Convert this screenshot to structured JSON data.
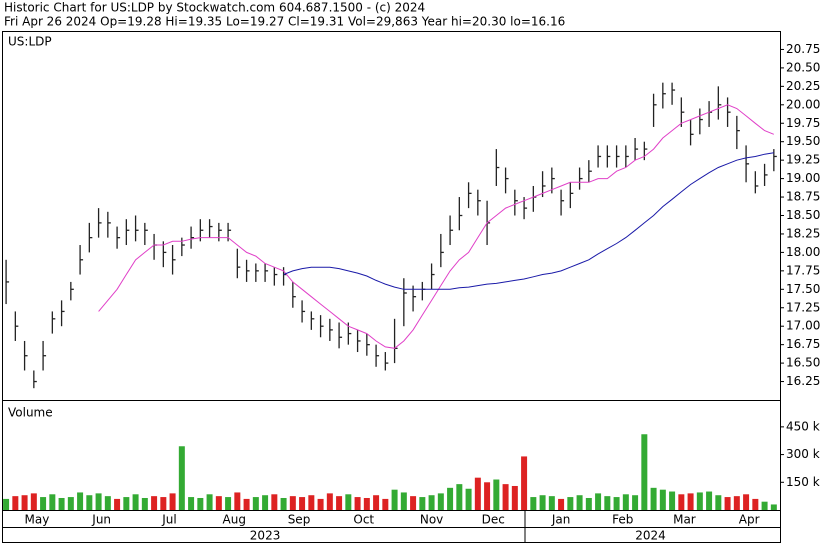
{
  "chart_data": {
    "type": "ohlc",
    "title": "Historic Chart for US:LDP by Stockwatch.com 604.687.1500 - (c) 2024",
    "subtitle": "Fri Apr 26 2024  Op=19.28  Hi=19.35  Lo=19.27  Cl=19.31  Vol=29,863  Year hi=20.30  lo=16.16",
    "symbol_label": "US:LDP",
    "bar_color": "#222222",
    "x": [
      0,
      3,
      6,
      9,
      12,
      15,
      18,
      21,
      24,
      27,
      30,
      33,
      36,
      39,
      42,
      45,
      48,
      51,
      54,
      57,
      60,
      63,
      66,
      69,
      72,
      75,
      78,
      81,
      84,
      87,
      90,
      93,
      96,
      99,
      102,
      105,
      108,
      111,
      114,
      117,
      120,
      123,
      126,
      129,
      132,
      135,
      138,
      141,
      144,
      147,
      150,
      153,
      156,
      159,
      162,
      165,
      168,
      171,
      174,
      177,
      180,
      183,
      186,
      189,
      192,
      195,
      198,
      201,
      204,
      207,
      210,
      213,
      216,
      219,
      222,
      225,
      228,
      231,
      234,
      237,
      240,
      243,
      246,
      249
    ],
    "xlim": [
      -1,
      251
    ],
    "xticks": [
      {
        "value": 10,
        "label": "May"
      },
      {
        "value": 31,
        "label": "Jun"
      },
      {
        "value": 53,
        "label": "Jul"
      },
      {
        "value": 74,
        "label": "Aug"
      },
      {
        "value": 95,
        "label": "Sep"
      },
      {
        "value": 116,
        "label": "Oct"
      },
      {
        "value": 138,
        "label": "Nov"
      },
      {
        "value": 158,
        "label": "Dec"
      },
      {
        "value": 180,
        "label": "Jan"
      },
      {
        "value": 200,
        "label": "Feb"
      },
      {
        "value": 220,
        "label": "Mar"
      },
      {
        "value": 241,
        "label": "Apr"
      }
    ],
    "year_ticks": [
      {
        "value": 84,
        "label": "2023"
      },
      {
        "value": 209,
        "label": "2024"
      }
    ],
    "ylim": [
      16.0,
      21.0
    ],
    "yticks": [
      16.25,
      {
        "value": 16.5,
        "label": "16.50"
      },
      16.75,
      {
        "value": 17,
        "label": "17.00"
      },
      17.25,
      {
        "value": 17.5,
        "label": "17.50"
      },
      17.75,
      {
        "value": 18,
        "label": "18.00"
      },
      18.25,
      {
        "value": 18.5,
        "label": "18.50"
      },
      18.75,
      {
        "value": 19,
        "label": "19.00"
      },
      19.25,
      {
        "value": 19.5,
        "label": "19.50"
      },
      19.75,
      {
        "value": 20,
        "label": "20.00"
      },
      20.25,
      {
        "value": 20.5,
        "label": "20.50"
      },
      20.75
    ],
    "high": [
      17.9,
      17.2,
      16.8,
      16.4,
      16.8,
      17.2,
      17.35,
      17.6,
      18.1,
      18.4,
      18.6,
      18.55,
      18.35,
      18.45,
      18.5,
      18.4,
      18.25,
      18.15,
      18.1,
      18.2,
      18.35,
      18.45,
      18.45,
      18.4,
      18.4,
      18.05,
      17.9,
      17.85,
      17.85,
      17.8,
      17.8,
      17.6,
      17.35,
      17.2,
      17.15,
      17.1,
      17.05,
      17.05,
      16.95,
      16.9,
      16.75,
      16.65,
      17.1,
      17.65,
      17.55,
      17.6,
      17.85,
      18.25,
      18.5,
      18.75,
      18.95,
      18.85,
      18.7,
      19.4,
      19.15,
      18.85,
      18.75,
      18.9,
      19.1,
      19.15,
      18.85,
      18.95,
      19.15,
      19.25,
      19.45,
      19.45,
      19.45,
      19.45,
      19.55,
      19.5,
      20.15,
      20.3,
      20.3,
      20.1,
      19.8,
      19.95,
      20.05,
      20.25,
      20.1,
      19.85,
      19.45,
      19.1,
      19.2,
      19.4
    ],
    "low": [
      17.3,
      16.8,
      16.4,
      16.16,
      16.4,
      16.9,
      17.0,
      17.35,
      17.7,
      18.0,
      18.2,
      18.2,
      18.05,
      18.1,
      18.15,
      18.1,
      17.9,
      17.8,
      17.7,
      17.95,
      18.05,
      18.15,
      18.2,
      18.15,
      18.15,
      17.65,
      17.6,
      17.6,
      17.6,
      17.55,
      17.55,
      17.25,
      17.05,
      16.95,
      16.85,
      16.8,
      16.7,
      16.75,
      16.65,
      16.6,
      16.45,
      16.4,
      16.5,
      17.0,
      17.2,
      17.35,
      17.5,
      17.8,
      18.1,
      18.3,
      18.6,
      18.5,
      18.1,
      18.9,
      18.8,
      18.5,
      18.45,
      18.55,
      18.75,
      18.8,
      18.5,
      18.6,
      18.85,
      18.95,
      19.15,
      19.15,
      19.15,
      19.15,
      19.25,
      19.25,
      19.7,
      19.95,
      20.0,
      19.7,
      19.45,
      19.6,
      19.7,
      19.8,
      19.7,
      19.4,
      18.95,
      18.8,
      18.9,
      19.1
    ],
    "close": [
      17.6,
      17.0,
      16.6,
      16.25,
      16.6,
      17.1,
      17.2,
      17.5,
      17.9,
      18.2,
      18.4,
      18.4,
      18.2,
      18.3,
      18.3,
      18.3,
      18.1,
      18.0,
      17.9,
      18.1,
      18.2,
      18.3,
      18.35,
      18.3,
      18.3,
      17.8,
      17.75,
      17.75,
      17.75,
      17.7,
      17.7,
      17.4,
      17.2,
      17.1,
      17.0,
      16.95,
      16.85,
      16.9,
      16.8,
      16.75,
      16.6,
      16.5,
      16.7,
      17.45,
      17.4,
      17.5,
      17.7,
      18.0,
      18.3,
      18.5,
      18.8,
      18.7,
      18.4,
      19.15,
      19.0,
      18.7,
      18.6,
      18.75,
      18.9,
      19.0,
      18.7,
      18.8,
      19.0,
      19.1,
      19.3,
      19.3,
      19.3,
      19.3,
      19.4,
      19.4,
      20.0,
      20.15,
      20.2,
      19.9,
      19.6,
      19.8,
      19.9,
      20.0,
      19.9,
      19.65,
      19.2,
      18.9,
      19.05,
      19.3
    ],
    "ma_lines": [
      {
        "color": "#e040c8",
        "values": [
          null,
          null,
          null,
          null,
          null,
          null,
          null,
          null,
          null,
          null,
          17.2,
          17.35,
          17.5,
          17.7,
          17.9,
          18.0,
          18.1,
          18.1,
          18.15,
          18.15,
          18.18,
          18.2,
          18.2,
          18.2,
          18.2,
          18.1,
          18.0,
          17.95,
          17.85,
          17.8,
          17.75,
          17.6,
          17.5,
          17.4,
          17.3,
          17.2,
          17.1,
          17.0,
          16.95,
          16.9,
          16.8,
          16.72,
          16.7,
          16.8,
          16.95,
          17.15,
          17.35,
          17.55,
          17.75,
          17.9,
          18.0,
          18.2,
          18.4,
          18.5,
          18.6,
          18.65,
          18.7,
          18.75,
          18.8,
          18.85,
          18.9,
          18.95,
          18.95,
          18.95,
          19.0,
          19.0,
          19.1,
          19.15,
          19.25,
          19.3,
          19.4,
          19.55,
          19.65,
          19.75,
          19.8,
          19.85,
          19.9,
          19.95,
          20.0,
          19.95,
          19.85,
          19.75,
          19.65,
          19.6
        ]
      },
      {
        "color": "#1a1aa8",
        "values": [
          null,
          null,
          null,
          null,
          null,
          null,
          null,
          null,
          null,
          null,
          null,
          null,
          null,
          null,
          null,
          null,
          null,
          null,
          null,
          null,
          null,
          null,
          null,
          null,
          null,
          null,
          null,
          null,
          null,
          null,
          17.7,
          17.75,
          17.78,
          17.8,
          17.8,
          17.8,
          17.78,
          17.75,
          17.72,
          17.68,
          17.62,
          17.57,
          17.53,
          17.5,
          17.5,
          17.5,
          17.5,
          17.5,
          17.5,
          17.52,
          17.53,
          17.55,
          17.57,
          17.58,
          17.6,
          17.62,
          17.64,
          17.67,
          17.7,
          17.72,
          17.75,
          17.8,
          17.85,
          17.9,
          17.98,
          18.05,
          18.12,
          18.2,
          18.3,
          18.4,
          18.5,
          18.62,
          18.72,
          18.82,
          18.92,
          19.0,
          19.08,
          19.15,
          19.2,
          19.25,
          19.28,
          19.3,
          19.33,
          19.35
        ]
      }
    ],
    "volume": {
      "label": "Volume",
      "up_color": "#33aa33",
      "down_color": "#dd2222",
      "ylim": [
        0,
        590000
      ],
      "yticks": [
        {
          "value": 150000,
          "label": "150 k"
        },
        {
          "value": 300000,
          "label": "300 k"
        },
        {
          "value": 450000,
          "label": "450 k"
        }
      ],
      "values": [
        60000,
        75000,
        80000,
        90000,
        70000,
        85000,
        65000,
        70000,
        95000,
        80000,
        90000,
        75000,
        60000,
        70000,
        85000,
        65000,
        75000,
        70000,
        90000,
        345000,
        70000,
        65000,
        85000,
        75000,
        70000,
        95000,
        60000,
        70000,
        80000,
        85000,
        65000,
        75000,
        70000,
        80000,
        60000,
        90000,
        75000,
        85000,
        70000,
        65000,
        80000,
        60000,
        110000,
        95000,
        75000,
        70000,
        80000,
        90000,
        120000,
        140000,
        115000,
        175000,
        150000,
        165000,
        140000,
        130000,
        290000,
        70000,
        80000,
        75000,
        60000,
        70000,
        80000,
        65000,
        90000,
        75000,
        70000,
        85000,
        80000,
        410000,
        120000,
        110000,
        100000,
        85000,
        90000,
        95000,
        100000,
        80000,
        70000,
        75000,
        85000,
        60000,
        45000,
        30000
      ]
    }
  }
}
